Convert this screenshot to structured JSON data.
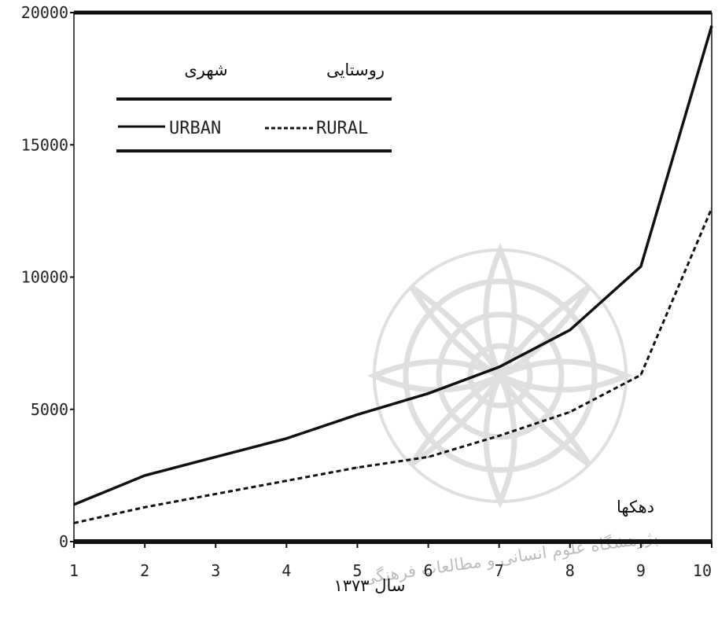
{
  "chart_data": {
    "type": "line",
    "x": [
      1,
      2,
      3,
      4,
      5,
      6,
      7,
      8,
      9,
      10
    ],
    "xlim": [
      1,
      10
    ],
    "ylim": [
      0,
      20000
    ],
    "x_ticks": [
      "1",
      "2",
      "3",
      "4",
      "5",
      "6",
      "7",
      "8",
      "9",
      "10"
    ],
    "y_ticks": [
      "0",
      "5000",
      "10000",
      "15000",
      "20000"
    ],
    "xlabel": "سال ۱۳۷۳",
    "annotation": "دهکها",
    "legend": {
      "placement": "top-left",
      "persian_labels": [
        "شهری",
        "روستایی"
      ],
      "latin_labels": [
        "URBAN",
        "RURAL"
      ]
    },
    "series": [
      {
        "name": "URBAN",
        "style": "solid",
        "values": [
          1400,
          2500,
          3200,
          3900,
          4800,
          5600,
          6600,
          8000,
          10400,
          19500
        ]
      },
      {
        "name": "RURAL",
        "style": "dashed",
        "values": [
          700,
          1300,
          1800,
          2300,
          2800,
          3200,
          4000,
          4900,
          6300,
          12600
        ]
      }
    ],
    "grid": false,
    "colors": {
      "line": "#111111",
      "axis": "#111111"
    }
  },
  "watermark": {
    "text": "پژوهشگاه علوم انسانی و مطالعات فرهنگی"
  }
}
